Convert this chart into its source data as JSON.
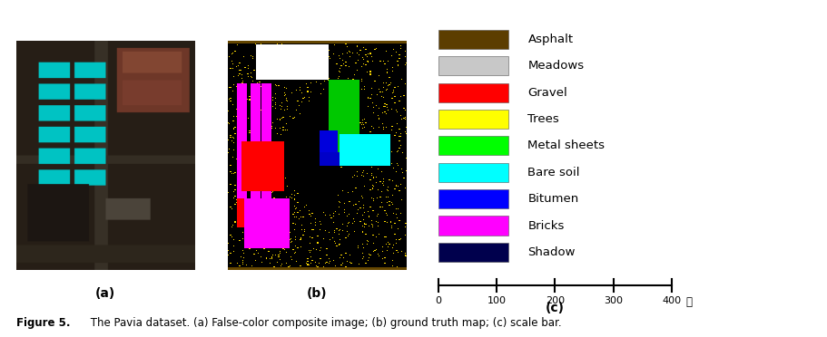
{
  "figure_title_bold": "Figure 5.",
  "figure_title_rest": " The Pavia dataset. (a) False-color composite image; (b) ground truth map; (c) scale bar.",
  "legend_items": [
    {
      "label": "Asphalt",
      "color": "#5c3d00"
    },
    {
      "label": "Meadows",
      "color": "#c8c8c8"
    },
    {
      "label": "Gravel",
      "color": "#ff0000"
    },
    {
      "label": "Trees",
      "color": "#ffff00"
    },
    {
      "label": "Metal sheets",
      "color": "#00ff00"
    },
    {
      "label": "Bare soil",
      "color": "#00ffff"
    },
    {
      "label": "Bitumen",
      "color": "#0000ff"
    },
    {
      "label": "Bricks",
      "color": "#ff00ff"
    },
    {
      "label": "Shadow",
      "color": "#00004d"
    }
  ],
  "scalebar_ticks": [
    0,
    100,
    200,
    300,
    400
  ],
  "scalebar_unit": "米",
  "bg_color": "#ffffff",
  "label_a": "(a)",
  "label_b": "(b)",
  "label_c": "(c)"
}
